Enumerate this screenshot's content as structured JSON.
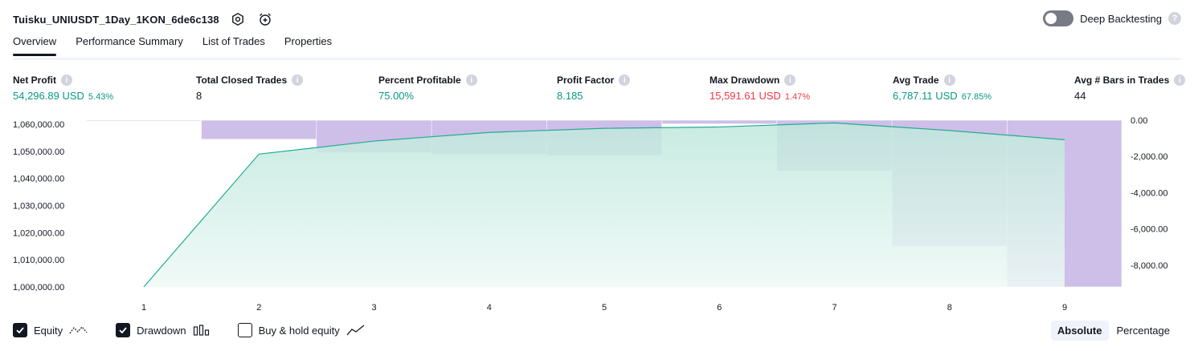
{
  "header": {
    "strategy_name": "Tuisku_UNIUSDT_1Day_1KON_6de6c138",
    "settings_icon": "gear-icon",
    "alert_icon": "alarm-clock-plus-icon"
  },
  "deep_backtesting": {
    "label": "Deep Backtesting",
    "enabled": false,
    "help_icon": "?"
  },
  "tabs": [
    {
      "label": "Overview",
      "active": true
    },
    {
      "label": "Performance Summary",
      "active": false
    },
    {
      "label": "List of Trades",
      "active": false
    },
    {
      "label": "Properties",
      "active": false
    }
  ],
  "metrics": {
    "net_profit": {
      "label": "Net Profit",
      "value": "54,296.89 USD",
      "sub": "5.43%"
    },
    "total_closed_trades": {
      "label": "Total Closed Trades",
      "value": "8"
    },
    "percent_profitable": {
      "label": "Percent Profitable",
      "value": "75.00%"
    },
    "profit_factor": {
      "label": "Profit Factor",
      "value": "8.185"
    },
    "max_drawdown": {
      "label": "Max Drawdown",
      "value": "15,591.61 USD",
      "sub": "1.47%"
    },
    "avg_trade": {
      "label": "Avg Trade",
      "value": "6,787.11 USD",
      "sub": "67.85%"
    },
    "avg_bars": {
      "label": "Avg # Bars in Trades",
      "value": "44"
    },
    "info_glyph": "i"
  },
  "legend": {
    "equity": {
      "label": "Equity",
      "checked": true,
      "icon": "equity-line-icon"
    },
    "drawdown": {
      "label": "Drawdown",
      "checked": true,
      "icon": "drawdown-bars-icon"
    },
    "buy_hold": {
      "label": "Buy & hold equity",
      "checked": false,
      "icon": "buy-hold-line-icon"
    }
  },
  "scale_buttons": {
    "absolute": "Absolute",
    "percentage": "Percentage",
    "active": "absolute"
  },
  "colors": {
    "equity_line": "#22ab94",
    "equity_fill_top": "#bfe8dc",
    "equity_fill_bottom": "#eef9f6",
    "drawdown_bar": "rgba(126,87,194,0.38)",
    "positive": "#089981",
    "negative": "#f23645"
  },
  "chart_data": {
    "type": "area",
    "x": [
      1,
      2,
      3,
      4,
      5,
      6,
      7,
      8,
      9
    ],
    "equity": {
      "name": "Equity",
      "values": [
        1000000,
        1049000,
        1053800,
        1057000,
        1058500,
        1059000,
        1060500,
        1057700,
        1054300
      ]
    },
    "drawdown": {
      "name": "Drawdown",
      "values": [
        0,
        -1050,
        -1800,
        -1880,
        -1950,
        -200,
        -2800,
        -6950,
        -9200
      ]
    },
    "left_axis": {
      "ticks": [
        1000000,
        1010000,
        1020000,
        1030000,
        1040000,
        1050000,
        1060000
      ],
      "tick_labels": [
        "1,000,000.00",
        "1,010,000.00",
        "1,020,000.00",
        "1,030,000.00",
        "1,040,000.00",
        "1,050,000.00",
        "1,060,000.00"
      ],
      "range": [
        1000000,
        1061500
      ]
    },
    "right_axis": {
      "ticks": [
        0,
        -2000,
        -4000,
        -6000,
        -8000
      ],
      "tick_labels": [
        "0.00",
        "-2,000.00",
        "-4,000.00",
        "-6,000.00",
        "-8,000.00"
      ],
      "range": [
        -9200,
        0
      ]
    },
    "x_tick_labels": [
      "1",
      "2",
      "3",
      "4",
      "5",
      "6",
      "7",
      "8",
      "9"
    ],
    "grid": false
  }
}
